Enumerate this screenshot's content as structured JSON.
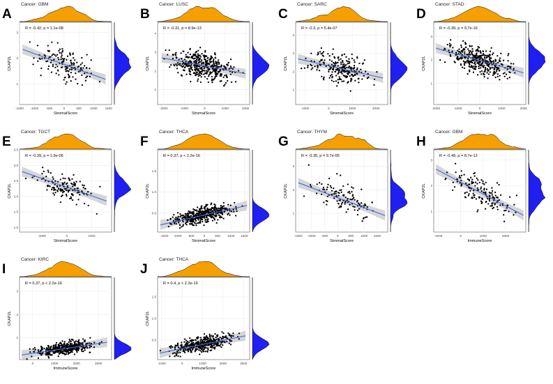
{
  "colors": {
    "density_top": "#f5a000",
    "density_right": "#1f1ff2",
    "points": "#000000",
    "fit_line": "#4169e1",
    "ci_band": "#c8c8c8",
    "grid": "#ebebeb",
    "panel_border": "#555555"
  },
  "chart_data": [
    {
      "letter": "A",
      "cancer": "Cancer: GBM",
      "type": "scatter",
      "stat": "R = -0.42, p = 1.1e-08",
      "xlabel": "StromalScore",
      "ylabel": "CKAP2L",
      "xticks": [
        -1500,
        -1000,
        -500,
        0,
        500,
        1000,
        1500
      ],
      "yticks": [
        1,
        2,
        3
      ],
      "xlim": [
        -1500,
        1600
      ],
      "ylim": [
        0.2,
        3.4
      ],
      "fit": {
        "x": [
          -1400,
          1400
        ],
        "y": [
          2.35,
          1.18
        ]
      },
      "n_points": 150,
      "seed": 11,
      "noise": 0.65
    },
    {
      "letter": "B",
      "cancer": "Cancer: LUSC",
      "type": "scatter",
      "stat": "R = -0.31, p = 8.9e-13",
      "xlabel": "StromalScore",
      "ylabel": "CKAP2L",
      "xticks": [
        -2000,
        -1000,
        0,
        1000,
        2000
      ],
      "yticks": [
        1,
        2,
        3,
        4
      ],
      "xlim": [
        -2300,
        2200
      ],
      "ylim": [
        0.2,
        4.6
      ],
      "fit": {
        "x": [
          -2100,
          2000
        ],
        "y": [
          2.7,
          1.85
        ]
      },
      "n_points": 420,
      "seed": 22,
      "noise": 0.75
    },
    {
      "letter": "C",
      "cancer": "Cancer: SARC",
      "type": "scatter",
      "stat": "R = -0.3, p = 5.4e-07",
      "xlabel": "StromalScore",
      "ylabel": "CKAP2L",
      "xticks": [
        -1000,
        0,
        1000,
        2000
      ],
      "yticks": [
        1,
        2,
        3,
        4
      ],
      "xlim": [
        -1400,
        2500
      ],
      "ylim": [
        0.2,
        4.7
      ],
      "fit": {
        "x": [
          -1300,
          2300
        ],
        "y": [
          2.7,
          1.65
        ]
      },
      "n_points": 240,
      "seed": 33,
      "noise": 0.85
    },
    {
      "letter": "D",
      "cancer": "Cancer: STAD",
      "type": "scatter",
      "stat": "R = -0.39, p = 9.7e-16",
      "xlabel": "StromalScore",
      "ylabel": "CKAP2L",
      "xticks": [
        -2000,
        -1000,
        0,
        1000,
        2000
      ],
      "yticks": [
        1,
        2,
        3
      ],
      "xlim": [
        -2100,
        2100
      ],
      "ylim": [
        0.1,
        3.6
      ],
      "fit": {
        "x": [
          -2000,
          2000
        ],
        "y": [
          2.5,
          1.45
        ]
      },
      "n_points": 380,
      "seed": 44,
      "noise": 0.6
    },
    {
      "letter": "E",
      "cancer": "Cancer: TGCT",
      "type": "scatter",
      "stat": "R = -0.39, p = 1.9e-06",
      "xlabel": "StromalScore",
      "ylabel": "CKAP2L",
      "xticks": [
        -1000,
        0,
        1000
      ],
      "yticks": [
        1.0,
        1.5,
        2.0,
        2.5,
        3.0,
        3.5
      ],
      "xlim": [
        -1900,
        1800
      ],
      "ylim": [
        0.85,
        3.5
      ],
      "fit": {
        "x": [
          -1800,
          1600
        ],
        "y": [
          2.8,
          1.85
        ]
      },
      "n_points": 140,
      "seed": 55,
      "noise": 0.45
    },
    {
      "letter": "F",
      "cancer": "Cancer: THCA",
      "type": "scatter",
      "stat": "R = 0.37, p < 2.2e-16",
      "xlabel": "StromalScore",
      "ylabel": "CKAP2L",
      "xticks": [
        -1500,
        -1000,
        -500,
        0,
        500,
        1000,
        1500
      ],
      "yticks": [
        0.5,
        1.0,
        1.5
      ],
      "xlim": [
        -1750,
        1700
      ],
      "ylim": [
        0.05,
        2.0
      ],
      "fit": {
        "x": [
          -1650,
          1600
        ],
        "y": [
          0.22,
          0.68
        ]
      },
      "n_points": 420,
      "seed": 66,
      "noise": 0.2
    },
    {
      "letter": "G",
      "cancer": "Cancer: THYM",
      "type": "scatter",
      "stat": "R = -0.35, p = 9.7e-05",
      "xlabel": "StromalScore",
      "ylabel": "CKAP2L",
      "xticks": [
        -1500,
        -1000,
        -500,
        0,
        500,
        1000,
        1500
      ],
      "yticks": [
        1,
        2,
        3
      ],
      "xlim": [
        -1600,
        1900
      ],
      "ylim": [
        0.2,
        3.7
      ],
      "fit": {
        "x": [
          -1500,
          1800
        ],
        "y": [
          2.3,
          0.9
        ]
      },
      "n_points": 120,
      "seed": 77,
      "noise": 0.7
    },
    {
      "letter": "H",
      "cancer": "Cancer: GBM",
      "type": "scatter",
      "stat": "R = -0.49, p = 8.7e-12",
      "xlabel": "ImmuneScore",
      "ylabel": "CKAP2L",
      "xticks": [
        -1000,
        0,
        1000,
        2000
      ],
      "yticks": [
        1,
        2,
        3
      ],
      "xlim": [
        -1200,
        2900
      ],
      "ylim": [
        0.2,
        3.4
      ],
      "fit": {
        "x": [
          -1100,
          2800
        ],
        "y": [
          2.65,
          0.85
        ]
      },
      "n_points": 160,
      "seed": 88,
      "noise": 0.6
    },
    {
      "letter": "I",
      "cancer": "Cancer: KIRC",
      "type": "scatter",
      "stat": "R = 0.37, p < 2.2e-16",
      "xlabel": "ImmuneScore",
      "ylabel": "CKAP2L",
      "xticks": [
        0,
        1000,
        2000,
        3000
      ],
      "yticks": [
        1,
        2,
        3
      ],
      "xlim": [
        -600,
        3600
      ],
      "ylim": [
        0.05,
        3.6
      ],
      "fit": {
        "x": [
          -500,
          3400
        ],
        "y": [
          0.25,
          0.8
        ]
      },
      "n_points": 400,
      "seed": 99,
      "noise": 0.3
    },
    {
      "letter": "J",
      "cancer": "Cancer: THCA",
      "type": "scatter",
      "stat": "R = 0.4, p < 2.2e-16",
      "xlabel": "ImmuneScore",
      "ylabel": "CKAP2L",
      "xticks": [
        -1000,
        0,
        1000,
        2000,
        3000
      ],
      "yticks": [
        0.5,
        1.0,
        1.5
      ],
      "xlim": [
        -1200,
        3300
      ],
      "ylim": [
        0.05,
        1.95
      ],
      "fit": {
        "x": [
          -1100,
          3100
        ],
        "y": [
          0.2,
          0.6
        ]
      },
      "n_points": 420,
      "seed": 111,
      "noise": 0.18
    }
  ]
}
